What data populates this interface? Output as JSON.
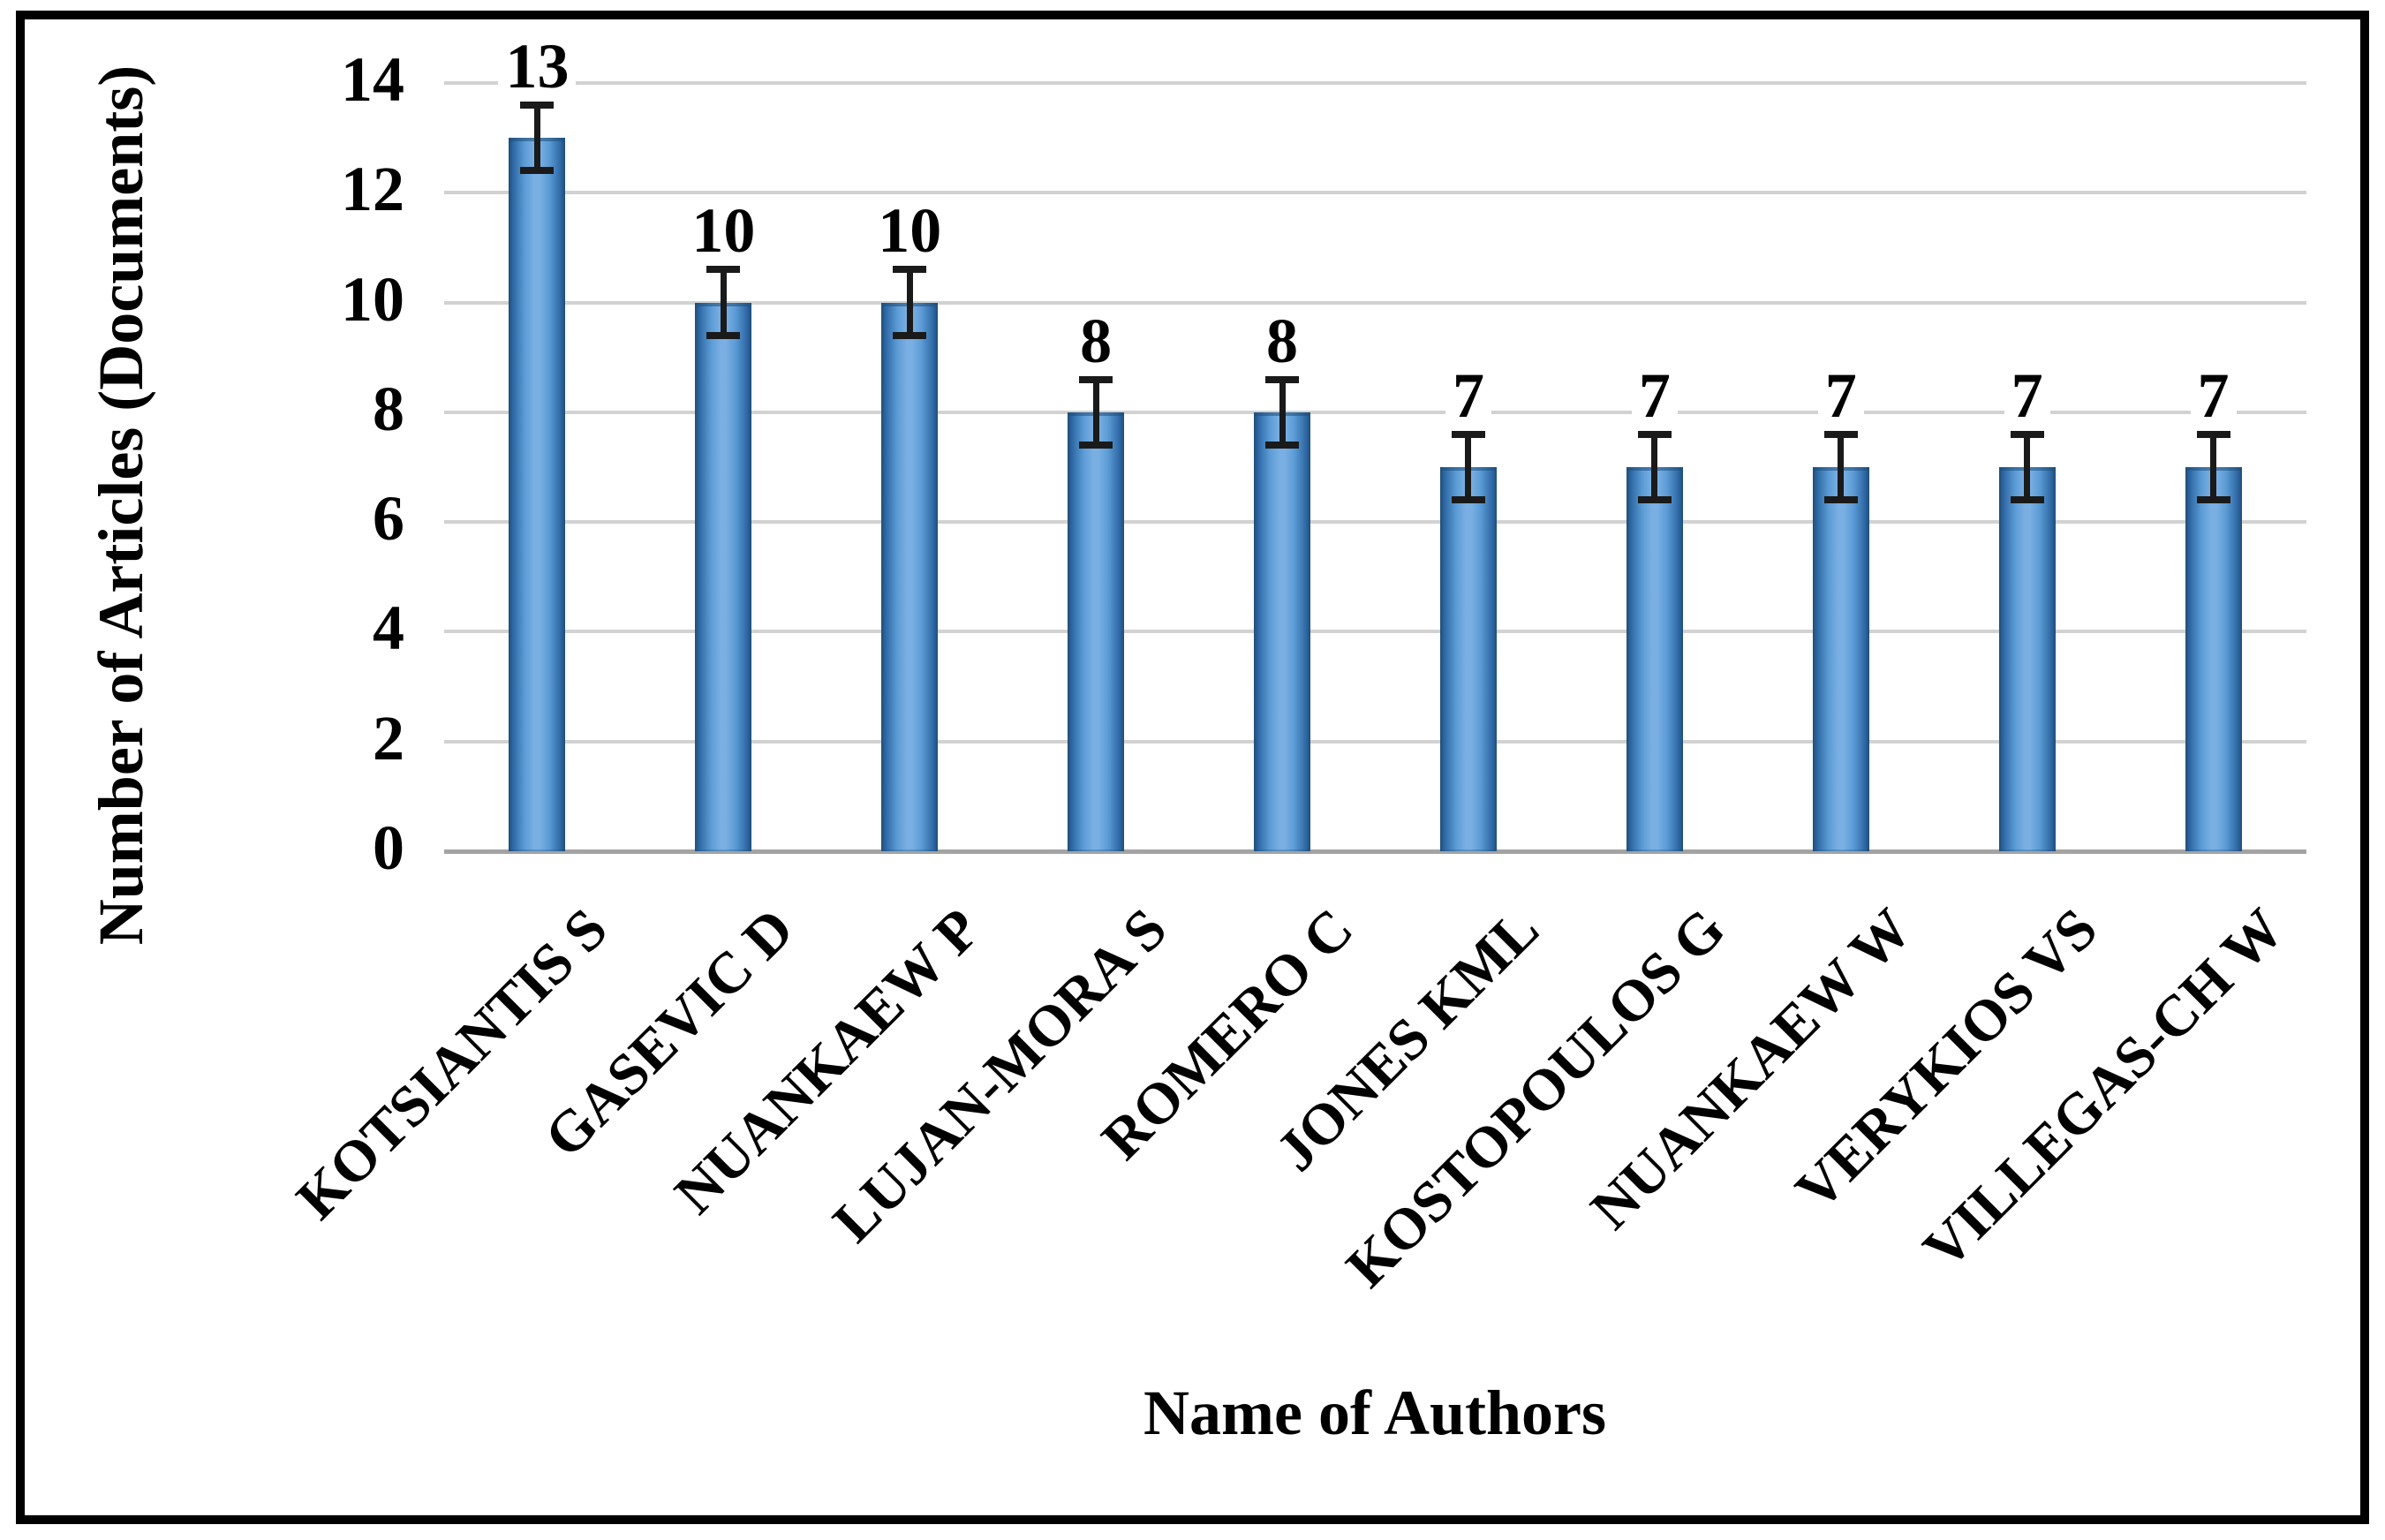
{
  "chart_data": {
    "type": "bar",
    "categories": [
      "KOTSIANTIS S",
      "GASEVIC D",
      "NUANKAEW P",
      "LUJAN-MORA S",
      "ROMERO C",
      "JONES KML",
      "KOSTOPOULOS G",
      "NUANKAEW W",
      "VERYKIOS VS",
      "VILLEGAS-CH W"
    ],
    "values": [
      13,
      10,
      10,
      8,
      8,
      7,
      7,
      7,
      7,
      7
    ],
    "data_labels": [
      "13",
      "10",
      "10",
      "8",
      "8",
      "7",
      "7",
      "7",
      "7",
      "7"
    ],
    "error_bars": {
      "plus": 0.6,
      "minus": 0.6
    },
    "xlabel": "Name of Authors",
    "ylabel": "Number of Articles (Documents)",
    "ylim": [
      0,
      14
    ],
    "yticks": [
      0,
      2,
      4,
      6,
      8,
      10,
      12,
      14
    ],
    "grid": "horizontal-major",
    "legend": "none",
    "colors": {
      "bar_fill": "#5B9BD5",
      "bar_fill_light": "#79AFE3",
      "bar_edge": "#1F4E79",
      "bar_edge_mid": "#2E68A4",
      "gridline": "#D2D2D2",
      "baseline": "#A3A3A3",
      "error_bar": "#1A1A1A",
      "text": "#000000",
      "frame": "#000000",
      "background": "#FFFFFF"
    }
  }
}
